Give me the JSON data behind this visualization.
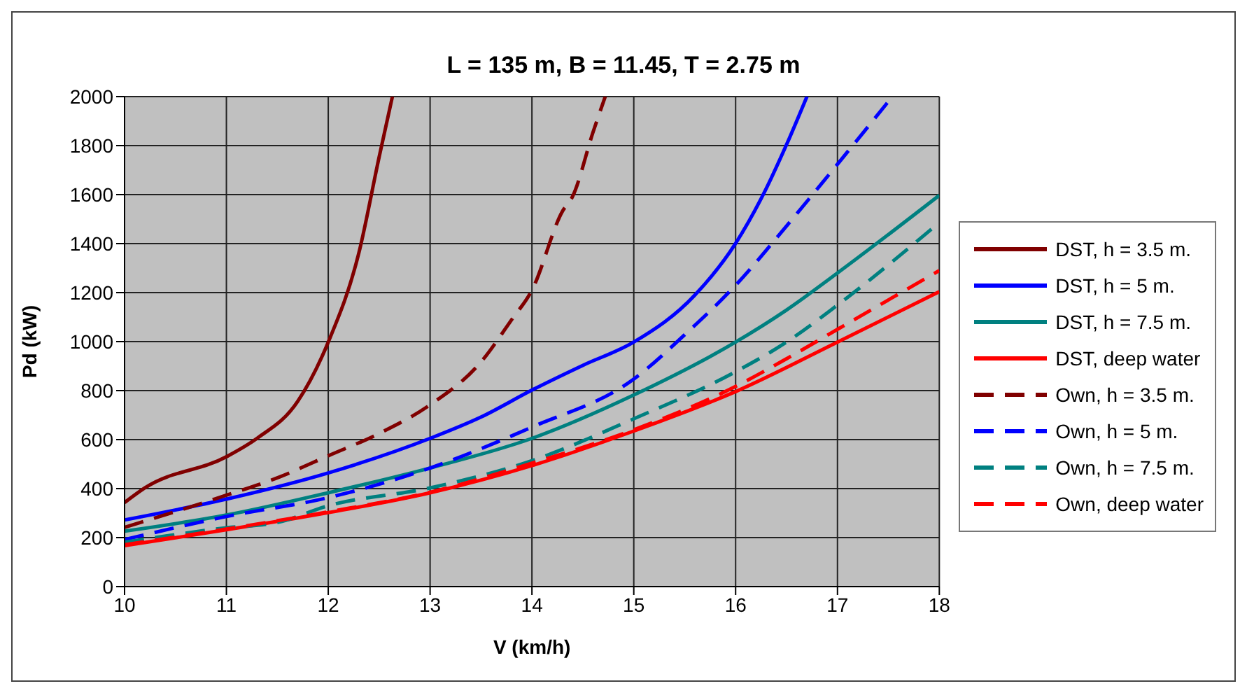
{
  "chart_data": {
    "type": "line",
    "title": "L = 135 m, B = 11.45, T = 2.75 m",
    "xlabel": "V (km/h)",
    "ylabel": "Pd (kW)",
    "xlim": [
      10,
      18
    ],
    "xticks": [
      10,
      11,
      12,
      13,
      14,
      15,
      16,
      17,
      18
    ],
    "ylim": [
      0,
      2000
    ],
    "yticks": [
      0,
      200,
      400,
      600,
      800,
      1000,
      1200,
      1400,
      1600,
      1800,
      2000
    ],
    "grid": true,
    "legend": "right",
    "marker": "none",
    "series": [
      {
        "name": "DST, h = 3.5 m.",
        "color": "#800000",
        "line_style": "solid",
        "x": [
          10,
          10.2,
          11,
          11.3,
          11.7,
          12,
          12.3,
          12.5,
          12.63
        ],
        "values": [
          343,
          403,
          530,
          605,
          756,
          998,
          1361,
          1754,
          2000
        ]
      },
      {
        "name": "DST, h = 5 m.",
        "color": "#0000ff",
        "line_style": "solid",
        "x": [
          10,
          11,
          12,
          13,
          13.5,
          14,
          14.5,
          15,
          15.6,
          16,
          16.25,
          16.5,
          16.7
        ],
        "values": [
          272,
          357,
          464,
          605,
          692,
          802,
          903,
          998,
          1190,
          1401,
          1583,
          1804,
          2000
        ]
      },
      {
        "name": "DST, h = 7.5 m.",
        "color": "#008080",
        "line_style": "solid",
        "x": [
          10,
          11,
          12,
          13,
          14,
          15,
          16,
          16.5,
          17,
          18
        ],
        "values": [
          226,
          292,
          383,
          484,
          605,
          782,
          998,
          1129,
          1280,
          1597
        ]
      },
      {
        "name": "DST, deep water",
        "color": "#ff0000",
        "line_style": "solid",
        "x": [
          10,
          11,
          12,
          13,
          14,
          15,
          16,
          17,
          18
        ],
        "values": [
          167,
          232,
          302,
          383,
          494,
          635,
          796,
          998,
          1204
        ]
      },
      {
        "name": "Own, h = 3.5 m.",
        "color": "#800000",
        "line_style": "dashed",
        "x": [
          10,
          11,
          11.5,
          12,
          12.5,
          13,
          13.5,
          13.8,
          14,
          14.3,
          14.4,
          14.6,
          14.72
        ],
        "values": [
          242,
          373,
          444,
          534,
          625,
          742,
          917,
          1089,
          1210,
          1532,
          1593,
          1855,
          2000
        ]
      },
      {
        "name": "Own, h = 5 m.",
        "color": "#0000ff",
        "line_style": "dashed",
        "x": [
          10,
          11,
          12,
          13,
          14,
          15,
          15.5,
          16,
          16.5,
          17,
          17.5
        ],
        "values": [
          192,
          286,
          363,
          484,
          651,
          847,
          1028,
          1230,
          1472,
          1724,
          1980
        ]
      },
      {
        "name": "Own, h = 7.5 m.",
        "color": "#008080",
        "line_style": "dashed",
        "x": [
          10,
          11,
          11.5,
          12,
          13,
          14,
          15,
          16,
          16.5,
          17,
          18
        ],
        "values": [
          181,
          240,
          262,
          330,
          403,
          514,
          685,
          877,
          998,
          1149,
          1486
        ]
      },
      {
        "name": "Own, deep water",
        "color": "#ff0000",
        "line_style": "dashed",
        "x": [
          10,
          11,
          12,
          13,
          14,
          15,
          16,
          16.5,
          17,
          18
        ],
        "values": [
          171,
          235,
          305,
          385,
          504,
          640,
          817,
          930,
          1050,
          1290
        ]
      }
    ]
  }
}
